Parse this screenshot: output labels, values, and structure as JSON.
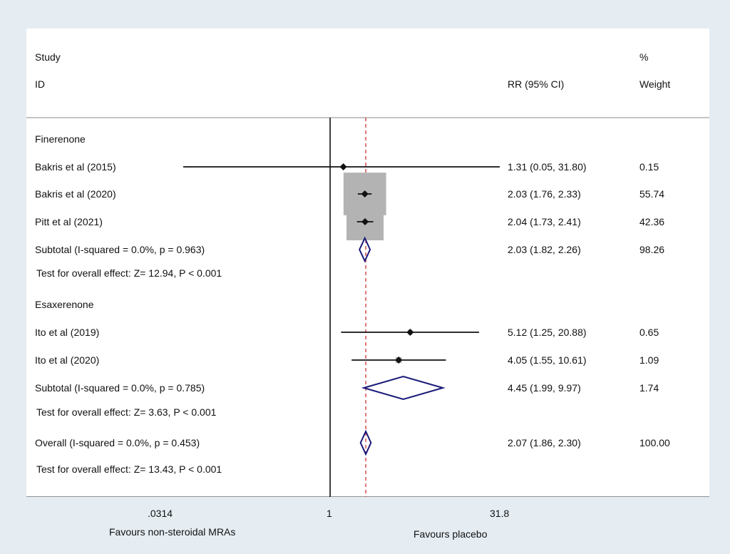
{
  "chart_data": {
    "type": "forest",
    "header": {
      "study_line1": "Study",
      "study_line2": "ID",
      "effect_label": "RR (95% CI)",
      "weight_line1": "%",
      "weight_line2": "Weight"
    },
    "x_scale": "log",
    "xlim": [
      0.0314,
      31.8
    ],
    "xticks": [
      ".0314",
      "1",
      "31.8"
    ],
    "null_line": 1,
    "overall_line": 2.07,
    "xlabel_left": "Favours non-steroidal MRAs",
    "xlabel_right": "Favours placebo",
    "rows": [
      {
        "type": "group",
        "label": "Finerenone"
      },
      {
        "type": "study",
        "label": "Bakris et al (2015)",
        "rr": 1.31,
        "lo": 0.05,
        "hi": 31.8,
        "ci_text": "1.31 (0.05, 31.80)",
        "weight": "0.15"
      },
      {
        "type": "study",
        "label": "Bakris et al (2020)",
        "rr": 2.03,
        "lo": 1.76,
        "hi": 2.33,
        "ci_text": "2.03 (1.76, 2.33)",
        "weight": "55.74"
      },
      {
        "type": "study",
        "label": "Pitt et al (2021)",
        "rr": 2.04,
        "lo": 1.73,
        "hi": 2.41,
        "ci_text": "2.04 (1.73, 2.41)",
        "weight": "42.36"
      },
      {
        "type": "subtotal",
        "label": "Subtotal  (I-squared = 0.0%, p = 0.963)",
        "rr": 2.03,
        "lo": 1.82,
        "hi": 2.26,
        "ci_text": "2.03 (1.82, 2.26)",
        "weight": "98.26"
      },
      {
        "type": "test",
        "label": "Test for overall effect: Z= 12.94, P < 0.001"
      },
      {
        "type": "group",
        "label": "Esaxerenone"
      },
      {
        "type": "study",
        "label": "Ito et al (2019)",
        "rr": 5.12,
        "lo": 1.25,
        "hi": 20.88,
        "ci_text": "5.12 (1.25, 20.88)",
        "weight": "0.65"
      },
      {
        "type": "study",
        "label": "Ito et al (2020)",
        "rr": 4.05,
        "lo": 1.55,
        "hi": 10.61,
        "ci_text": "4.05 (1.55, 10.61)",
        "weight": "1.09"
      },
      {
        "type": "subtotal",
        "label": "Subtotal  (I-squared = 0.0%, p = 0.785)",
        "rr": 4.45,
        "lo": 1.99,
        "hi": 9.97,
        "ci_text": "4.45 (1.99, 9.97)",
        "weight": "1.74"
      },
      {
        "type": "test",
        "label": "Test for overall effect: Z= 3.63, P < 0.001"
      },
      {
        "type": "overall",
        "label": "Overall  (I-squared = 0.0%, p = 0.453)",
        "rr": 2.07,
        "lo": 1.86,
        "hi": 2.3,
        "ci_text": "2.07 (1.86, 2.30)",
        "weight": "100.00"
      },
      {
        "type": "test",
        "label": "Test for overall effect: Z= 13.43, P < 0.001"
      }
    ],
    "colors": {
      "background": "#e5edf3",
      "panel": "#ffffff",
      "diamond": "#1a1a7a",
      "weight_box": "#b3b3b3",
      "overall_line": "#cc3333"
    }
  }
}
